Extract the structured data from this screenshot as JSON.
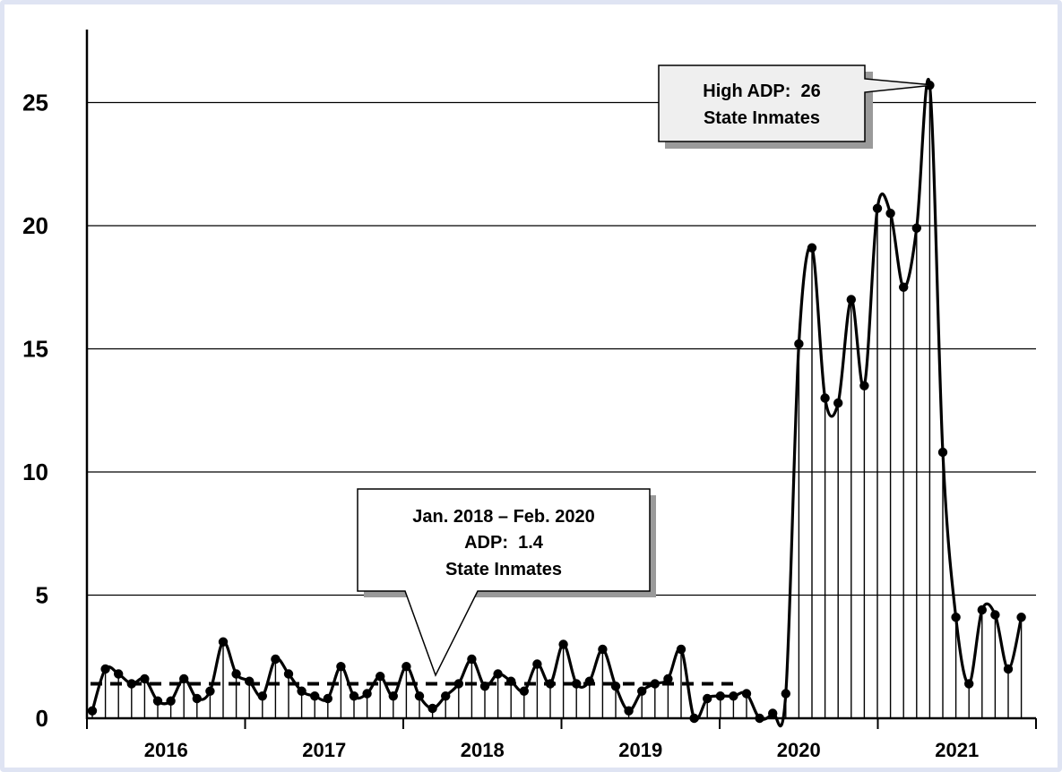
{
  "chart_data": {
    "type": "line",
    "title": "",
    "xlabel": "",
    "ylabel": "",
    "ylim": [
      0,
      27
    ],
    "y_ticks": [
      "0",
      "5",
      "10",
      "15",
      "20",
      "25"
    ],
    "grid": "horizontal",
    "x_labels": [
      "2016",
      "2017",
      "2018",
      "2019",
      "2020",
      "2021"
    ],
    "x_start": "Jan. 2016",
    "series": [
      {
        "values": [
          0.3,
          2.0,
          1.8,
          1.4,
          1.6,
          0.7,
          0.7,
          1.6,
          0.8,
          1.1,
          3.1,
          1.8,
          1.5,
          0.9,
          2.4,
          1.8,
          1.1,
          0.9,
          0.8,
          2.1,
          0.9,
          1.0,
          1.7,
          0.9,
          2.1,
          0.9,
          0.4,
          0.9,
          1.4,
          2.4,
          1.3,
          1.8,
          1.5,
          1.1,
          2.2,
          1.4,
          3.0,
          1.4,
          1.5,
          2.8,
          1.3,
          0.3,
          1.1,
          1.4,
          1.6,
          2.8,
          0.0,
          0.8,
          0.9,
          0.9,
          1.0,
          0.0,
          0.2,
          1.0,
          15.2,
          19.1,
          13.0,
          12.8,
          17.0,
          13.5,
          20.7,
          20.5,
          17.5,
          19.9,
          25.7,
          10.8,
          4.1,
          1.4,
          4.4,
          4.2,
          2.0,
          4.1
        ]
      }
    ],
    "reference_line": {
      "value": 1.4,
      "from": "Jan. 2016",
      "to": "Feb. 2020",
      "style": "dashed"
    },
    "annotations": [
      {
        "lines": [
          "High ADP:  26",
          "State Inmates"
        ]
      },
      {
        "lines": [
          "Jan. 2018 – Feb. 2020",
          "ADP:  1.4",
          "State Inmates"
        ]
      }
    ]
  }
}
